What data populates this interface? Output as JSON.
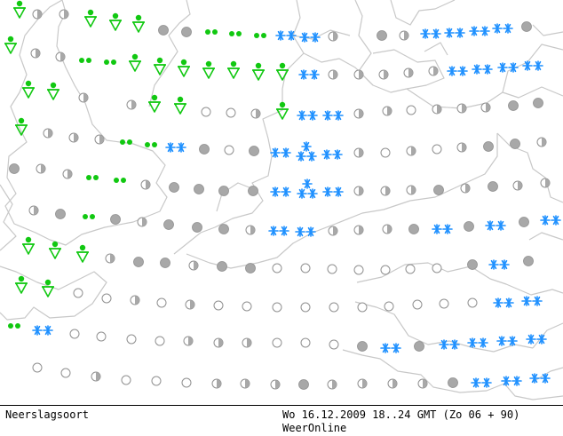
{
  "footer": {
    "map_type": "Neerslagsoort",
    "validity": "Wo 16.12.2009 18..24 GMT (Zo 06 + 90)",
    "brand": "WeerOnline"
  },
  "colors": {
    "coastline": "#c8c8c8",
    "snow": "#1e90ff",
    "rain": "#11c811",
    "overcast": "#a8a8a8",
    "outline": "#909090"
  },
  "legend_symbols": {
    "snow": "snow-icon",
    "rain": "rain-drops-icon",
    "showers": "shower-icon",
    "overcast": "overcast-icon",
    "half": "partly-cloudy-icon",
    "empty": "clear-sky-icon"
  }
}
